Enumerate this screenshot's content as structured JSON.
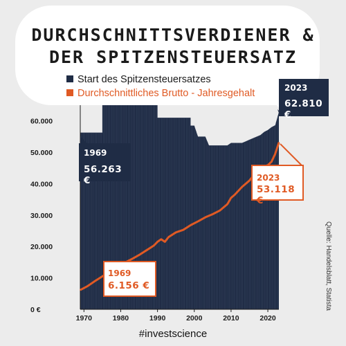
{
  "title_line1": "DURCHSCHNITTSVERDIENER &",
  "title_line2": "DER SPITZENSTEUERSATZ",
  "legend": [
    {
      "label": "Start des Spitzensteuersatzes",
      "color": "#1f2c45"
    },
    {
      "label": "Durchschnittliches Brutto - Jahresgehalt",
      "color": "#e05a24"
    }
  ],
  "callouts": {
    "top_2023": {
      "year": "2023",
      "value": "62.810 €"
    },
    "top_1969": {
      "year": "1969",
      "value": "56.263 €"
    },
    "salary_2023": {
      "year": "2023",
      "value": "53.118 €"
    },
    "salary_1969": {
      "year": "1969",
      "value": "6.156 €"
    }
  },
  "source": "Quelle: Handelsblatt, Statista",
  "hashtag": "#investscience",
  "chart_data": {
    "type": "area",
    "title": "",
    "xlabel": "",
    "ylabel": "",
    "xlim": [
      1969,
      2023
    ],
    "ylim": [
      0,
      65000
    ],
    "x_ticks": [
      1970,
      1980,
      1990,
      2000,
      2010,
      2020
    ],
    "x_tick_labels": [
      "1970",
      "1980",
      "1990",
      "2000",
      "2010",
      "2020"
    ],
    "y_ticks": [
      0,
      10000,
      20000,
      30000,
      40000,
      50000,
      60000
    ],
    "y_tick_labels": [
      "0 €",
      "10.000",
      "20.000",
      "30.000",
      "40.000",
      "50.000",
      "60.000"
    ],
    "series": [
      {
        "name": "Start des Spitzensteuersatzes",
        "kind": "area",
        "color": "#1f2c45",
        "points": [
          [
            1969,
            56263
          ],
          [
            1975,
            56263
          ],
          [
            1975,
            65000
          ],
          [
            1990,
            65000
          ],
          [
            1990,
            61000
          ],
          [
            1999,
            61000
          ],
          [
            1999,
            58500
          ],
          [
            2000,
            58500
          ],
          [
            2001,
            55000
          ],
          [
            2003,
            55000
          ],
          [
            2004,
            52200
          ],
          [
            2009,
            52200
          ],
          [
            2010,
            53000
          ],
          [
            2013,
            53000
          ],
          [
            2014,
            53500
          ],
          [
            2015,
            54000
          ],
          [
            2016,
            54500
          ],
          [
            2017,
            55000
          ],
          [
            2018,
            55500
          ],
          [
            2019,
            56500
          ],
          [
            2020,
            57100
          ],
          [
            2021,
            58000
          ],
          [
            2022,
            58600
          ],
          [
            2023,
            62810
          ]
        ]
      },
      {
        "name": "Durchschnittliches Brutto - Jahresgehalt",
        "kind": "line",
        "color": "#e05a24",
        "points": [
          [
            1969,
            6156
          ],
          [
            1971,
            7400
          ],
          [
            1973,
            9000
          ],
          [
            1975,
            10500
          ],
          [
            1977,
            11800
          ],
          [
            1979,
            13200
          ],
          [
            1981,
            14800
          ],
          [
            1983,
            16000
          ],
          [
            1985,
            17300
          ],
          [
            1987,
            18800
          ],
          [
            1989,
            20300
          ],
          [
            1990,
            21500
          ],
          [
            1991,
            22300
          ],
          [
            1992,
            21500
          ],
          [
            1993,
            23000
          ],
          [
            1995,
            24500
          ],
          [
            1997,
            25300
          ],
          [
            1999,
            26800
          ],
          [
            2001,
            28000
          ],
          [
            2003,
            29300
          ],
          [
            2005,
            30300
          ],
          [
            2007,
            31500
          ],
          [
            2009,
            33500
          ],
          [
            2010,
            35500
          ],
          [
            2011,
            36500
          ],
          [
            2013,
            39000
          ],
          [
            2015,
            41000
          ],
          [
            2017,
            44000
          ],
          [
            2019,
            45500
          ],
          [
            2020,
            45900
          ],
          [
            2021,
            47000
          ],
          [
            2022,
            49500
          ],
          [
            2023,
            53118
          ]
        ]
      }
    ],
    "legend": "top"
  }
}
